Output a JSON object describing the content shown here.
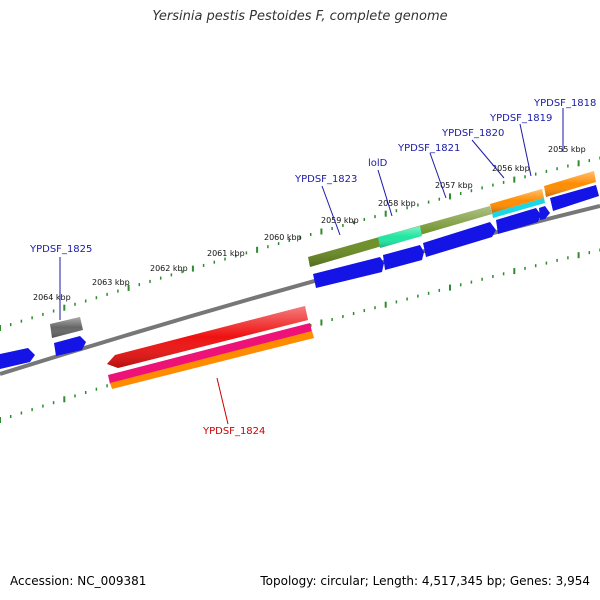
{
  "title": "Yersinia pestis Pestoides F, complete genome",
  "footer": {
    "accession": "Accession: NC_009381",
    "summary": "Topology: circular; Length: 4,517,345 bp; Genes: 3,954"
  },
  "colors": {
    "backbone": "#888888",
    "tick": "#2e8b2e",
    "label_blue": "#1a1aa8",
    "label_red": "#cc0000",
    "gene_blue": "#1414e6",
    "gene_olive": "#6b8e23",
    "gene_teal": "#1ee6a0",
    "gene_orange": "#ff8c00",
    "gene_cyan": "#1ad6e6",
    "gene_grey": "#666666",
    "gene_red": "#ee1111",
    "gene_pink": "#ee1177"
  },
  "kbp_labels": [
    "2064 kbp",
    "2063 kbp",
    "2062 kbp",
    "2061 kbp",
    "2060 kbp",
    "2059 kbp",
    "2058 kbp",
    "2057 kbp",
    "2056 kbp",
    "2055 kbp"
  ],
  "gene_labels": [
    {
      "text": "YPDSF_1825",
      "color": "blue"
    },
    {
      "text": "YPDSF_1823",
      "color": "blue"
    },
    {
      "text": "lolD",
      "color": "blue"
    },
    {
      "text": "YPDSF_1821",
      "color": "blue"
    },
    {
      "text": "YPDSF_1820",
      "color": "blue"
    },
    {
      "text": "YPDSF_1819",
      "color": "blue"
    },
    {
      "text": "YPDSF_1818",
      "color": "blue"
    },
    {
      "text": "YPDSF_1824",
      "color": "red"
    }
  ]
}
